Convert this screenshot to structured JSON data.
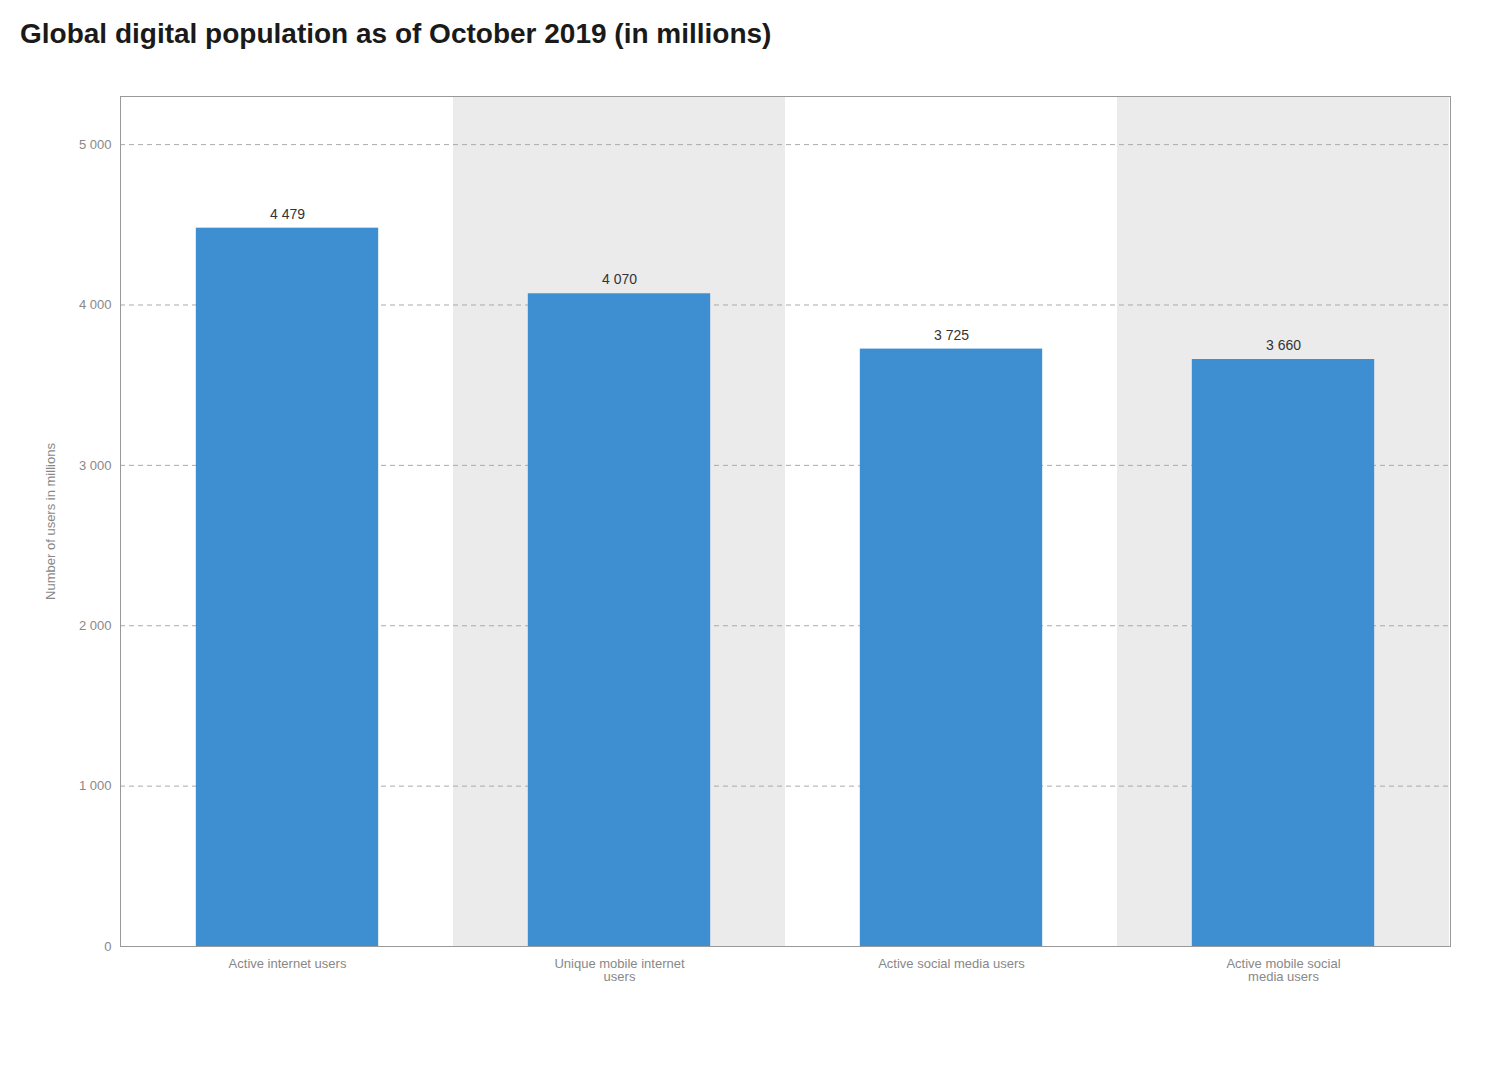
{
  "chart_data": {
    "type": "bar",
    "title": "Global digital population as of October 2019 (in millions)",
    "categories": [
      "Active internet users",
      "Unique mobile internet\nusers",
      "Active social media users",
      "Active mobile social\nmedia users"
    ],
    "values": [
      4479,
      4070,
      3725,
      3660
    ],
    "value_labels": [
      "4 479",
      "4 070",
      "3 725",
      "3 660"
    ],
    "data_labels": true,
    "color": "#3d8fd1",
    "ylabel": "Number of users in millions",
    "ylim": [
      0,
      5300
    ],
    "yticks": [
      0,
      {
        "value": 1000,
        "label": "1 000"
      },
      {
        "value": 2000,
        "label": "2 000"
      },
      {
        "value": 3000,
        "label": "3 000"
      },
      {
        "value": 4000,
        "label": "4 000"
      },
      {
        "value": 5000,
        "label": "5 000"
      }
    ],
    "grid": true
  }
}
